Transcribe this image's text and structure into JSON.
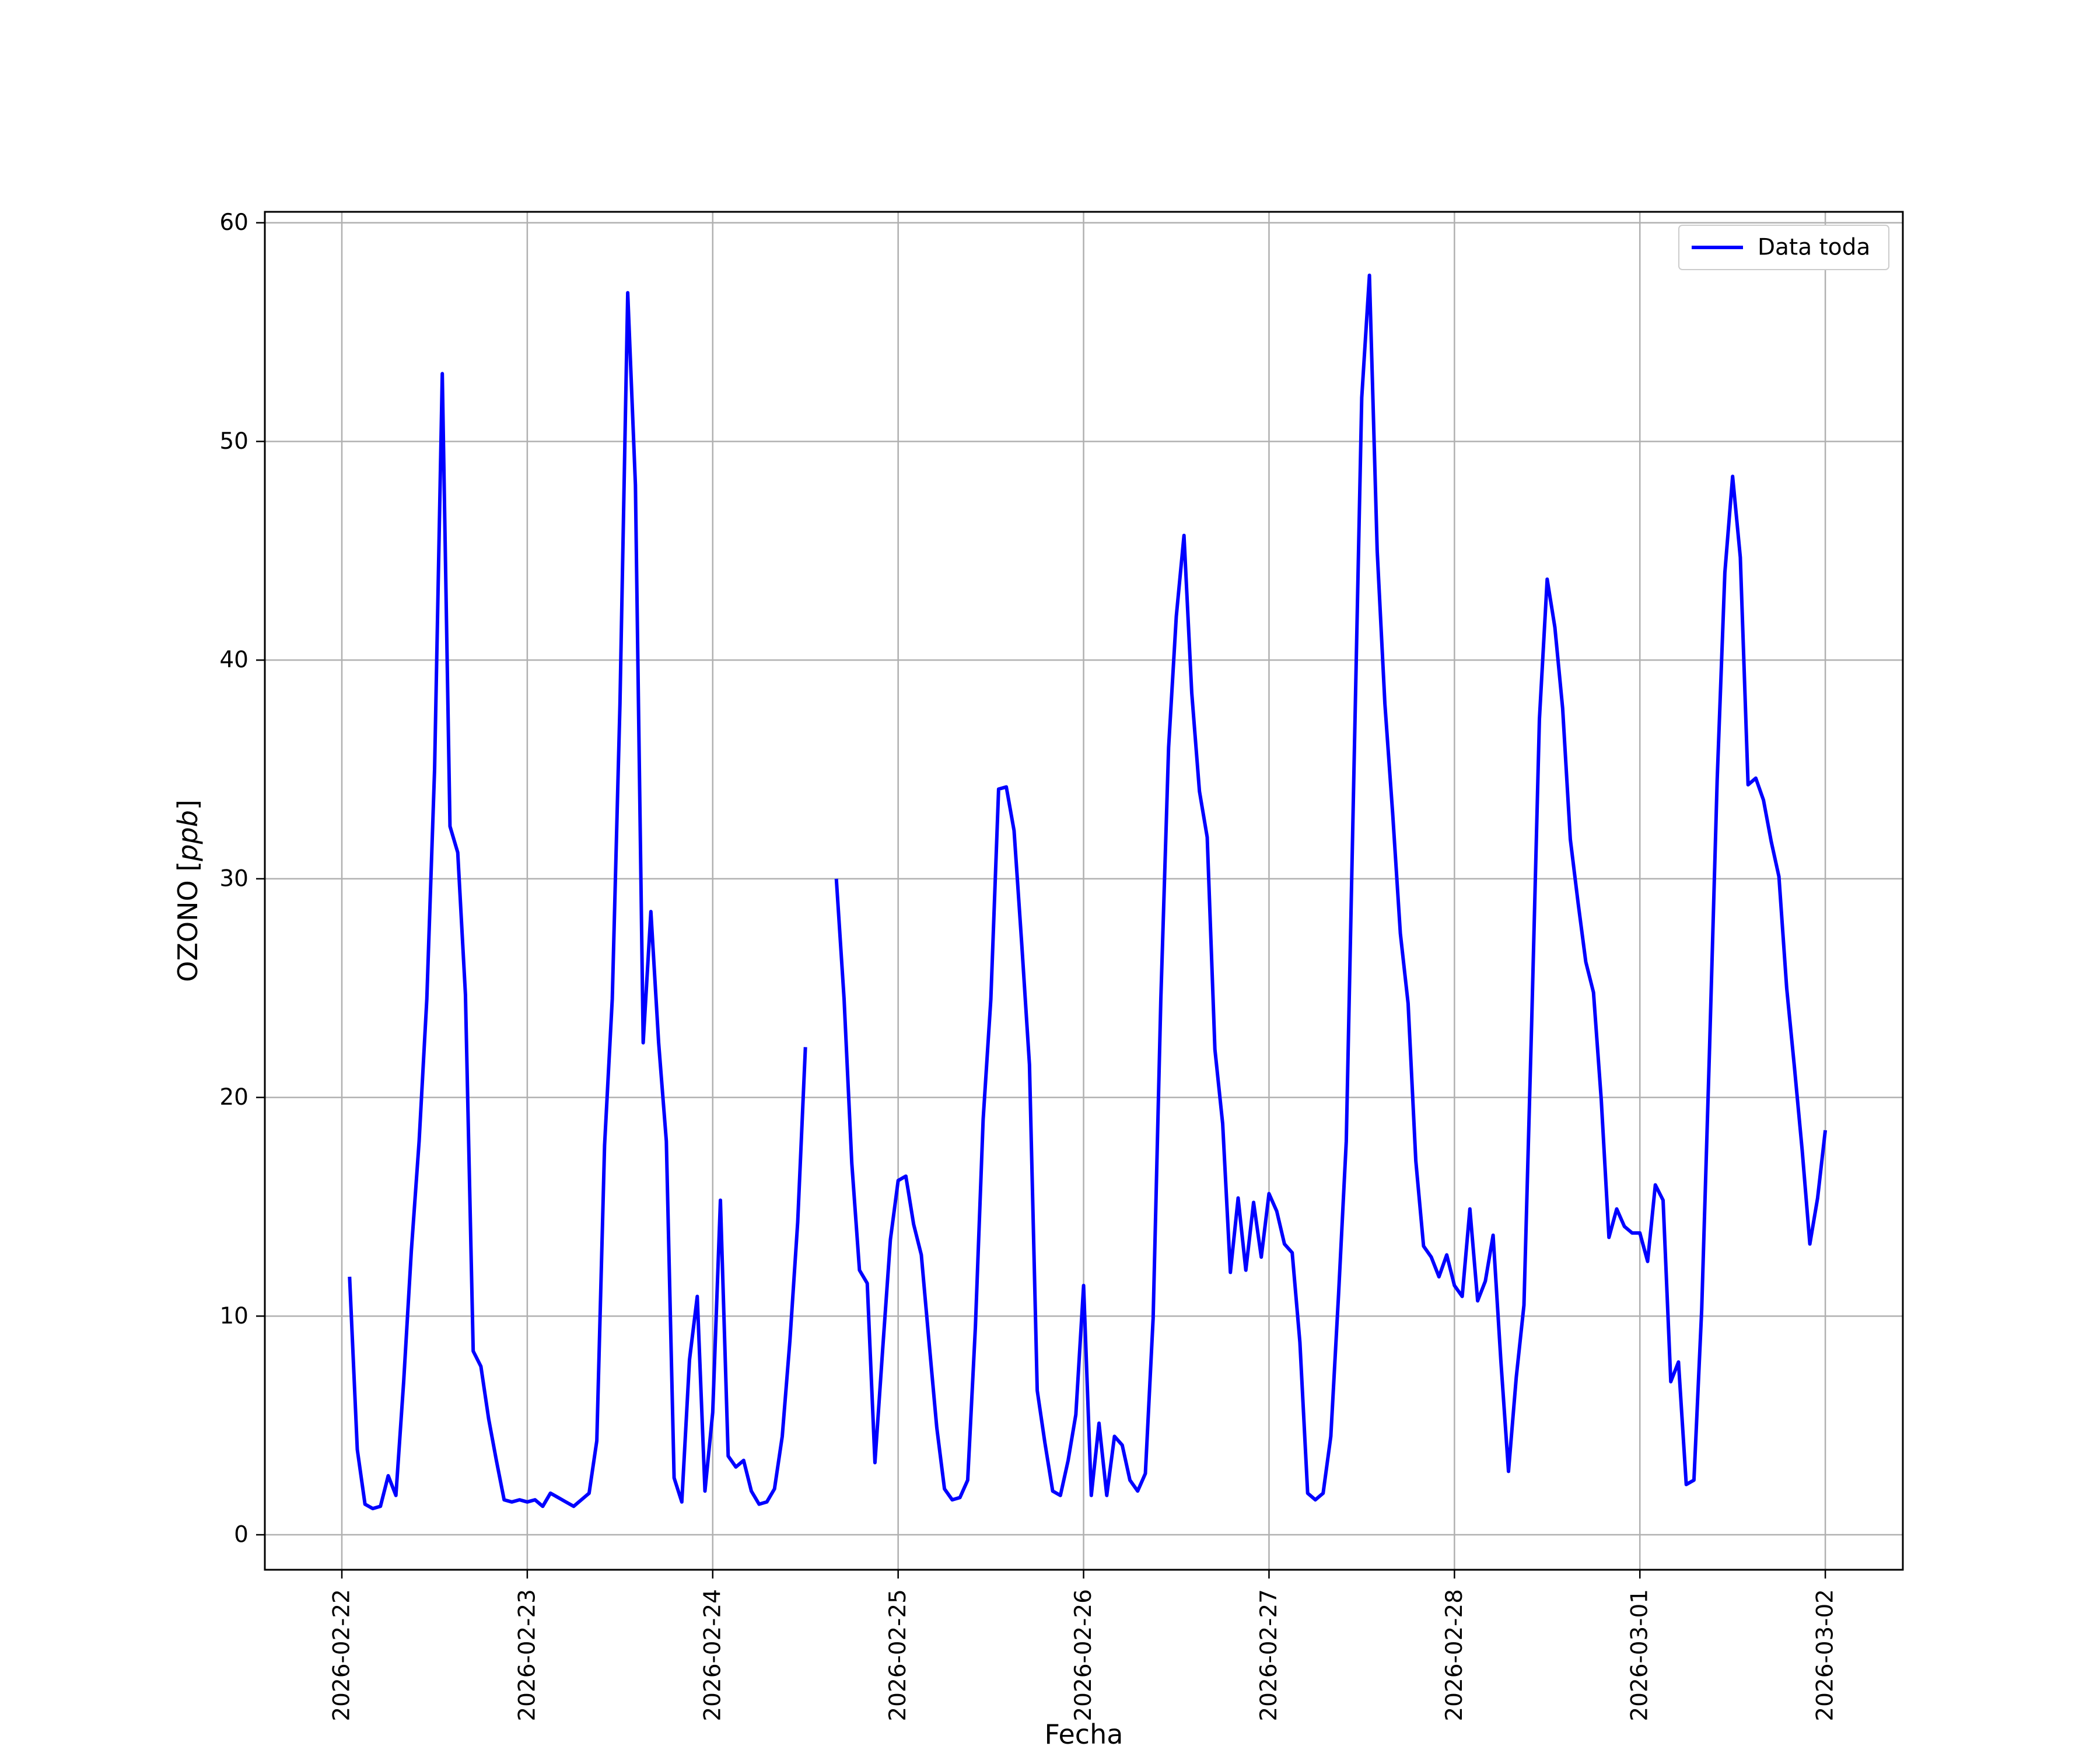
{
  "chart_data": {
    "type": "line",
    "title": "",
    "xlabel": "Fecha",
    "ylabel": "OZONO [ppb]",
    "ylabel_parts": {
      "main": "OZONO ",
      "open": "[",
      "unit": "ppb",
      "close": "]"
    },
    "x_range": [
      "2026-02-21 14:02",
      "2026-03-02 10:02"
    ],
    "ylim": [
      -1.6,
      60.5
    ],
    "x_ticks": [
      "2026-02-22",
      "2026-02-23",
      "2026-02-24",
      "2026-02-25",
      "2026-02-26",
      "2026-02-27",
      "2026-02-28",
      "2026-03-01",
      "2026-03-02"
    ],
    "y_ticks": [
      "0",
      "10",
      "20",
      "30",
      "40",
      "50",
      "60"
    ],
    "grid": true,
    "legend_position": "top-right",
    "colors": {
      "series": "#0000ff",
      "grid": "#b0b0b0",
      "axes": "#000000"
    },
    "series": [
      {
        "name": "Data toda",
        "x": [
          "2026-02-22 01:00",
          "2026-02-22 02:00",
          "2026-02-22 03:00",
          "2026-02-22 04:00",
          "2026-02-22 05:00",
          "2026-02-22 06:00",
          "2026-02-22 07:00",
          "2026-02-22 08:00",
          "2026-02-22 09:00",
          "2026-02-22 10:00",
          "2026-02-22 11:00",
          "2026-02-22 12:00",
          "2026-02-22 13:00",
          "2026-02-22 14:00",
          "2026-02-22 15:00",
          "2026-02-22 16:00",
          "2026-02-22 17:00",
          "2026-02-22 18:00",
          "2026-02-22 19:00",
          "2026-02-22 20:00",
          "2026-02-22 21:00",
          "2026-02-22 22:00",
          "2026-02-22 23:00",
          "2026-02-23 00:00",
          "2026-02-23 01:00",
          "2026-02-23 02:00",
          "2026-02-23 03:00",
          "2026-02-23 04:00",
          "2026-02-23 05:00",
          "2026-02-23 06:00",
          "2026-02-23 07:00",
          "2026-02-23 08:00",
          "2026-02-23 09:00",
          "2026-02-23 10:00",
          "2026-02-23 11:00",
          "2026-02-23 12:00",
          "2026-02-23 13:00",
          "2026-02-23 14:00",
          "2026-02-23 15:00",
          "2026-02-23 16:00",
          "2026-02-23 17:00",
          "2026-02-23 18:00",
          "2026-02-23 19:00",
          "2026-02-23 20:00",
          "2026-02-23 21:00",
          "2026-02-23 22:00",
          "2026-02-23 23:00",
          "2026-02-24 00:00",
          "2026-02-24 01:00",
          "2026-02-24 02:00",
          "2026-02-24 03:00",
          "2026-02-24 04:00",
          "2026-02-24 05:00",
          "2026-02-24 06:00",
          "2026-02-24 07:00",
          "2026-02-24 08:00",
          "2026-02-24 09:00",
          "2026-02-24 10:00",
          "2026-02-24 11:00",
          "2026-02-24 12:00",
          "2026-02-24 16:00",
          "2026-02-24 17:00",
          "2026-02-24 18:00",
          "2026-02-24 19:00",
          "2026-02-24 20:00",
          "2026-02-24 21:00",
          "2026-02-24 22:00",
          "2026-02-24 23:00",
          "2026-02-25 00:00",
          "2026-02-25 01:00",
          "2026-02-25 02:00",
          "2026-02-25 03:00",
          "2026-02-25 04:00",
          "2026-02-25 05:00",
          "2026-02-25 06:00",
          "2026-02-25 07:00",
          "2026-02-25 08:00",
          "2026-02-25 09:00",
          "2026-02-25 10:00",
          "2026-02-25 11:00",
          "2026-02-25 12:00",
          "2026-02-25 13:00",
          "2026-02-25 14:00",
          "2026-02-25 15:00",
          "2026-02-25 16:00",
          "2026-02-25 17:00",
          "2026-02-25 18:00",
          "2026-02-25 19:00",
          "2026-02-25 20:00",
          "2026-02-25 21:00",
          "2026-02-25 22:00",
          "2026-02-25 23:00",
          "2026-02-26 00:00",
          "2026-02-26 01:00",
          "2026-02-26 02:00",
          "2026-02-26 03:00",
          "2026-02-26 04:00",
          "2026-02-26 05:00",
          "2026-02-26 06:00",
          "2026-02-26 07:00",
          "2026-02-26 08:00",
          "2026-02-26 09:00",
          "2026-02-26 10:00",
          "2026-02-26 11:00",
          "2026-02-26 12:00",
          "2026-02-26 13:00",
          "2026-02-26 14:00",
          "2026-02-26 15:00",
          "2026-02-26 16:00",
          "2026-02-26 17:00",
          "2026-02-26 18:00",
          "2026-02-26 19:00",
          "2026-02-26 20:00",
          "2026-02-26 21:00",
          "2026-02-26 22:00",
          "2026-02-26 23:00",
          "2026-02-27 00:00",
          "2026-02-27 01:00",
          "2026-02-27 02:00",
          "2026-02-27 03:00",
          "2026-02-27 04:00",
          "2026-02-27 05:00",
          "2026-02-27 06:00",
          "2026-02-27 07:00",
          "2026-02-27 08:00",
          "2026-02-27 09:00",
          "2026-02-27 10:00",
          "2026-02-27 11:00",
          "2026-02-27 12:00",
          "2026-02-27 13:00",
          "2026-02-27 14:00",
          "2026-02-27 15:00",
          "2026-02-27 16:00",
          "2026-02-27 17:00",
          "2026-02-27 18:00",
          "2026-02-27 19:00",
          "2026-02-27 20:00",
          "2026-02-27 21:00",
          "2026-02-27 22:00",
          "2026-02-27 23:00",
          "2026-02-28 00:00",
          "2026-02-28 01:00",
          "2026-02-28 02:00",
          "2026-02-28 03:00",
          "2026-02-28 04:00",
          "2026-02-28 05:00",
          "2026-02-28 06:00",
          "2026-02-28 07:00",
          "2026-02-28 08:00",
          "2026-02-28 09:00",
          "2026-02-28 10:00",
          "2026-02-28 11:00",
          "2026-02-28 12:00",
          "2026-02-28 13:00",
          "2026-02-28 14:00",
          "2026-02-28 15:00",
          "2026-02-28 16:00",
          "2026-02-28 17:00",
          "2026-02-28 18:00",
          "2026-02-28 19:00",
          "2026-02-28 20:00",
          "2026-02-28 21:00",
          "2026-02-28 22:00",
          "2026-02-28 23:00",
          "2026-03-01 00:00",
          "2026-03-01 01:00",
          "2026-03-01 02:00",
          "2026-03-01 03:00",
          "2026-03-01 04:00",
          "2026-03-01 05:00",
          "2026-03-01 06:00",
          "2026-03-01 07:00",
          "2026-03-01 08:00",
          "2026-03-01 09:00",
          "2026-03-01 10:00",
          "2026-03-01 11:00",
          "2026-03-01 12:00",
          "2026-03-01 13:00",
          "2026-03-01 14:00",
          "2026-03-01 15:00",
          "2026-03-01 16:00",
          "2026-03-01 17:00",
          "2026-03-01 18:00",
          "2026-03-01 19:00",
          "2026-03-01 20:00",
          "2026-03-01 21:00",
          "2026-03-01 22:00",
          "2026-03-01 23:00",
          "2026-03-02 00:00"
        ],
        "y": [
          11.8,
          3.9,
          1.4,
          1.2,
          1.3,
          2.7,
          1.8,
          7.0,
          13.0,
          18.0,
          24.5,
          35.0,
          53.1,
          32.4,
          31.2,
          24.7,
          8.4,
          7.7,
          5.3,
          3.4,
          1.6,
          1.5,
          1.6,
          1.5,
          1.6,
          1.3,
          1.9,
          1.7,
          1.5,
          1.3,
          1.6,
          1.9,
          4.3,
          17.8,
          24.5,
          38.0,
          56.8,
          48.0,
          22.5,
          28.5,
          22.5,
          18.0,
          2.6,
          1.5,
          8.0,
          10.9,
          2.0,
          5.6,
          15.3,
          3.6,
          3.1,
          3.4,
          2.0,
          1.4,
          1.5,
          2.1,
          4.5,
          8.9,
          14.3,
          22.3,
          30.0,
          24.5,
          17.0,
          12.1,
          11.5,
          3.3,
          8.5,
          13.5,
          16.2,
          16.4,
          14.2,
          12.8,
          8.8,
          4.9,
          2.1,
          1.6,
          1.7,
          2.5,
          9.5,
          19.0,
          24.5,
          34.1,
          34.2,
          32.2,
          27.0,
          21.5,
          6.6,
          4.2,
          2.0,
          1.8,
          3.4,
          5.5,
          11.4,
          1.8,
          5.1,
          1.8,
          4.5,
          4.1,
          2.5,
          2.0,
          2.8,
          9.9,
          24.5,
          36.0,
          42.0,
          45.7,
          38.5,
          34.0,
          31.9,
          22.2,
          18.8,
          12.0,
          15.4,
          12.1,
          15.2,
          12.7,
          15.6,
          14.8,
          13.3,
          12.9,
          8.8,
          1.9,
          1.6,
          1.9,
          4.5,
          11.0,
          18.0,
          35.0,
          52.0,
          57.6,
          45.0,
          38.0,
          33.0,
          27.5,
          24.3,
          17.1,
          13.2,
          12.7,
          11.8,
          12.8,
          11.4,
          10.9,
          14.9,
          10.7,
          11.6,
          13.7,
          8.0,
          2.9,
          7.2,
          10.5,
          23.5,
          37.3,
          43.7,
          41.5,
          37.8,
          31.8,
          28.9,
          26.2,
          24.8,
          19.9,
          13.6,
          14.9,
          14.1,
          13.8,
          13.8,
          12.5,
          16.0,
          15.3,
          7.0,
          7.9,
          2.3,
          2.5,
          10.3,
          22.0,
          34.5,
          44.0,
          48.4,
          44.7,
          34.3,
          34.6,
          33.6,
          31.7,
          30.1,
          25.0,
          21.4,
          17.6,
          13.3,
          15.4,
          18.5
        ]
      }
    ]
  }
}
